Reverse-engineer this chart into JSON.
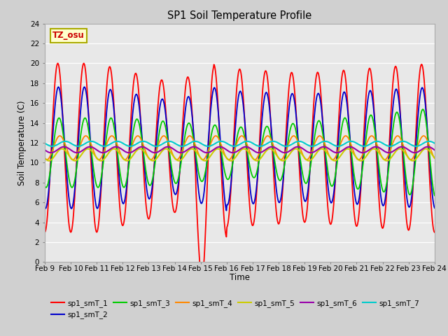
{
  "title": "SP1 Soil Temperature Profile",
  "xlabel": "Time",
  "ylabel": "Soil Temperature (C)",
  "ylim": [
    0,
    24
  ],
  "yticks": [
    0,
    2,
    4,
    6,
    8,
    10,
    12,
    14,
    16,
    18,
    20,
    22,
    24
  ],
  "xtick_labels": [
    "Feb 9",
    "Feb 10",
    "Feb 11",
    "Feb 12",
    "Feb 13",
    "Feb 14",
    "Feb 15",
    "Feb 16",
    "Feb 17",
    "Feb 18",
    "Feb 19",
    "Feb 20",
    "Feb 21",
    "Feb 22",
    "Feb 23",
    "Feb 24"
  ],
  "colors": {
    "sp1_smT_1": "#ff0000",
    "sp1_smT_2": "#0000cc",
    "sp1_smT_3": "#00cc00",
    "sp1_smT_4": "#ff8800",
    "sp1_smT_5": "#cccc00",
    "sp1_smT_6": "#9900aa",
    "sp1_smT_7": "#00cccc"
  },
  "fig_bg": "#d0d0d0",
  "plot_bg": "#e8e8e8",
  "annotation_text": "TZ_osu",
  "annotation_color": "#cc0000",
  "annotation_bg": "#ffffcc",
  "annotation_border": "#aaaa00"
}
